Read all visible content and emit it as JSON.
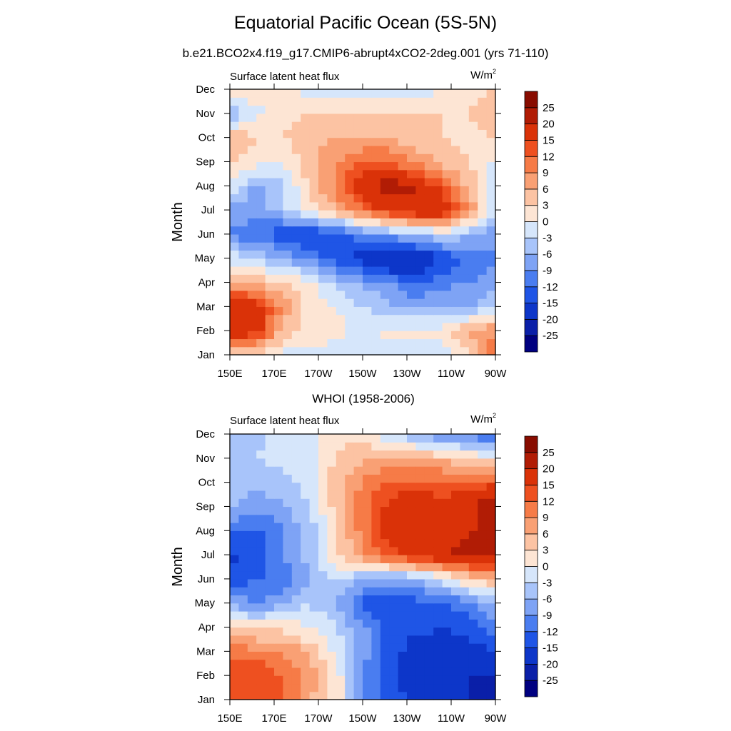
{
  "page": {
    "title": "Equatorial Pacific Ocean (5S-5N)",
    "subtitle": "b.e21.BCO2x4.f19_g17.CMIP6-abrupt4xCO2-2deg.001 (yrs 71-110)"
  },
  "chart_data": [
    {
      "type": "heatmap",
      "panel_title": "",
      "left_label": "Surface latent heat flux",
      "right_label": "W/m",
      "right_label_sup": "2",
      "xlabel": "",
      "ylabel": "Month",
      "x_ticks": [
        "150E",
        "170E",
        "170W",
        "150W",
        "130W",
        "110W",
        "90W"
      ],
      "y_ticks": [
        "Jan",
        "Feb",
        "Mar",
        "Apr",
        "May",
        "Jun",
        "Jul",
        "Aug",
        "Sep",
        "Oct",
        "Nov",
        "Dec"
      ],
      "colorbar_labels": [
        "-25",
        "-20",
        "-15",
        "-12",
        "-9",
        "-6",
        "-3",
        "0",
        "3",
        "6",
        "9",
        "12",
        "15",
        "20",
        "25"
      ],
      "colors": [
        "#000080",
        "#0a1fa8",
        "#0d36c9",
        "#1f55e6",
        "#4a7df0",
        "#7ea3f5",
        "#a8c4fa",
        "#d6e6fb",
        "#fde5d4",
        "#fcc3a3",
        "#f9a074",
        "#f67b47",
        "#ee5020",
        "#da3208",
        "#b11c05",
        "#880c00"
      ],
      "z_rows_jan_to_dec": [
        [
          3,
          2,
          -1,
          -1,
          -2,
          -3,
          -3,
          -3,
          -2,
          3,
          12
        ],
        [
          20,
          17,
          5,
          2,
          1,
          -1,
          1,
          1,
          1,
          6,
          9
        ],
        [
          20,
          17,
          8,
          1,
          0,
          -3,
          -5,
          -7,
          -6,
          -6,
          -3
        ],
        [
          6,
          5,
          4,
          1,
          -4,
          -7,
          -9,
          -12,
          -10,
          -9,
          -7
        ],
        [
          -1,
          -4,
          -6,
          -10,
          -14,
          -17,
          -22,
          -20,
          -15,
          -12,
          -10
        ],
        [
          -9,
          -12,
          -14,
          -15,
          -14,
          -10,
          -7,
          -5,
          -3,
          -6,
          -8
        ],
        [
          -7,
          -7,
          -4,
          1,
          6,
          12,
          16,
          19,
          20,
          9,
          -4
        ],
        [
          0,
          -7,
          -3,
          3,
          10,
          17,
          23,
          20,
          13,
          5,
          -3
        ],
        [
          3,
          1,
          0,
          5,
          9,
          12,
          12,
          8,
          5,
          3,
          -1
        ],
        [
          6,
          3,
          3,
          5,
          6,
          6,
          6,
          4,
          3,
          2,
          3
        ],
        [
          -7,
          -1,
          2,
          3,
          3,
          3,
          3,
          3,
          3,
          3,
          5
        ],
        [
          3,
          2,
          1,
          -1,
          -2,
          -3,
          -3,
          -3,
          1,
          2,
          3
        ]
      ]
    },
    {
      "type": "heatmap",
      "panel_title": "WHOI (1958-2006)",
      "left_label": "Surface latent heat flux",
      "right_label": "W/m",
      "right_label_sup": "2",
      "xlabel": "",
      "ylabel": "Month",
      "x_ticks": [
        "150E",
        "170E",
        "170W",
        "150W",
        "130W",
        "110W",
        "90W"
      ],
      "y_ticks": [
        "Jan",
        "Feb",
        "Mar",
        "Apr",
        "May",
        "Jun",
        "Jul",
        "Aug",
        "Sep",
        "Oct",
        "Nov",
        "Dec"
      ],
      "colorbar_labels": [
        "-25",
        "-20",
        "-15",
        "-12",
        "-9",
        "-6",
        "-3",
        "0",
        "3",
        "6",
        "9",
        "12",
        "15",
        "20",
        "25"
      ],
      "colors": [
        "#000080",
        "#0a1fa8",
        "#0d36c9",
        "#1f55e6",
        "#4a7df0",
        "#7ea3f5",
        "#a8c4fa",
        "#d6e6fb",
        "#fde5d4",
        "#fcc3a3",
        "#f9a074",
        "#f67b47",
        "#ee5020",
        "#da3208",
        "#b11c05",
        "#880c00"
      ],
      "z_rows_jan_to_dec": [
        [
          12,
          14,
          12,
          6,
          2,
          -8,
          -14,
          -15,
          -18,
          -20,
          -25
        ],
        [
          13,
          15,
          12,
          8,
          2,
          -9,
          -14,
          -18,
          -20,
          -20,
          -21
        ],
        [
          12,
          10,
          9,
          5,
          -1,
          -8,
          -13,
          -17,
          -17,
          -17,
          -15
        ],
        [
          3,
          2,
          2,
          0,
          -3,
          -8,
          -13,
          -14,
          -15,
          -14,
          -9
        ],
        [
          -7,
          -9,
          -7,
          -3,
          -6,
          -13,
          -15,
          -13,
          -12,
          -10,
          -6
        ],
        [
          -14,
          -12,
          -11,
          -7,
          -2,
          -6,
          -8,
          -6,
          -2,
          3,
          6
        ],
        [
          -16,
          -14,
          -9,
          -4,
          2,
          8,
          14,
          17,
          19,
          22,
          22
        ],
        [
          -11,
          -13,
          -9,
          -5,
          3,
          10,
          17,
          18,
          15,
          20,
          20
        ],
        [
          -6,
          -8,
          -7,
          -3,
          4,
          11,
          16,
          18,
          16,
          18,
          25
        ],
        [
          -4,
          -5,
          -4,
          -2,
          5,
          9,
          13,
          13,
          13,
          13,
          14
        ],
        [
          -3,
          -3,
          -2,
          -1,
          3,
          6,
          6,
          6,
          5,
          3,
          1
        ],
        [
          -3,
          -4,
          -2,
          -1,
          2,
          1,
          -2,
          -6,
          -9,
          -10,
          -13
        ]
      ]
    }
  ]
}
